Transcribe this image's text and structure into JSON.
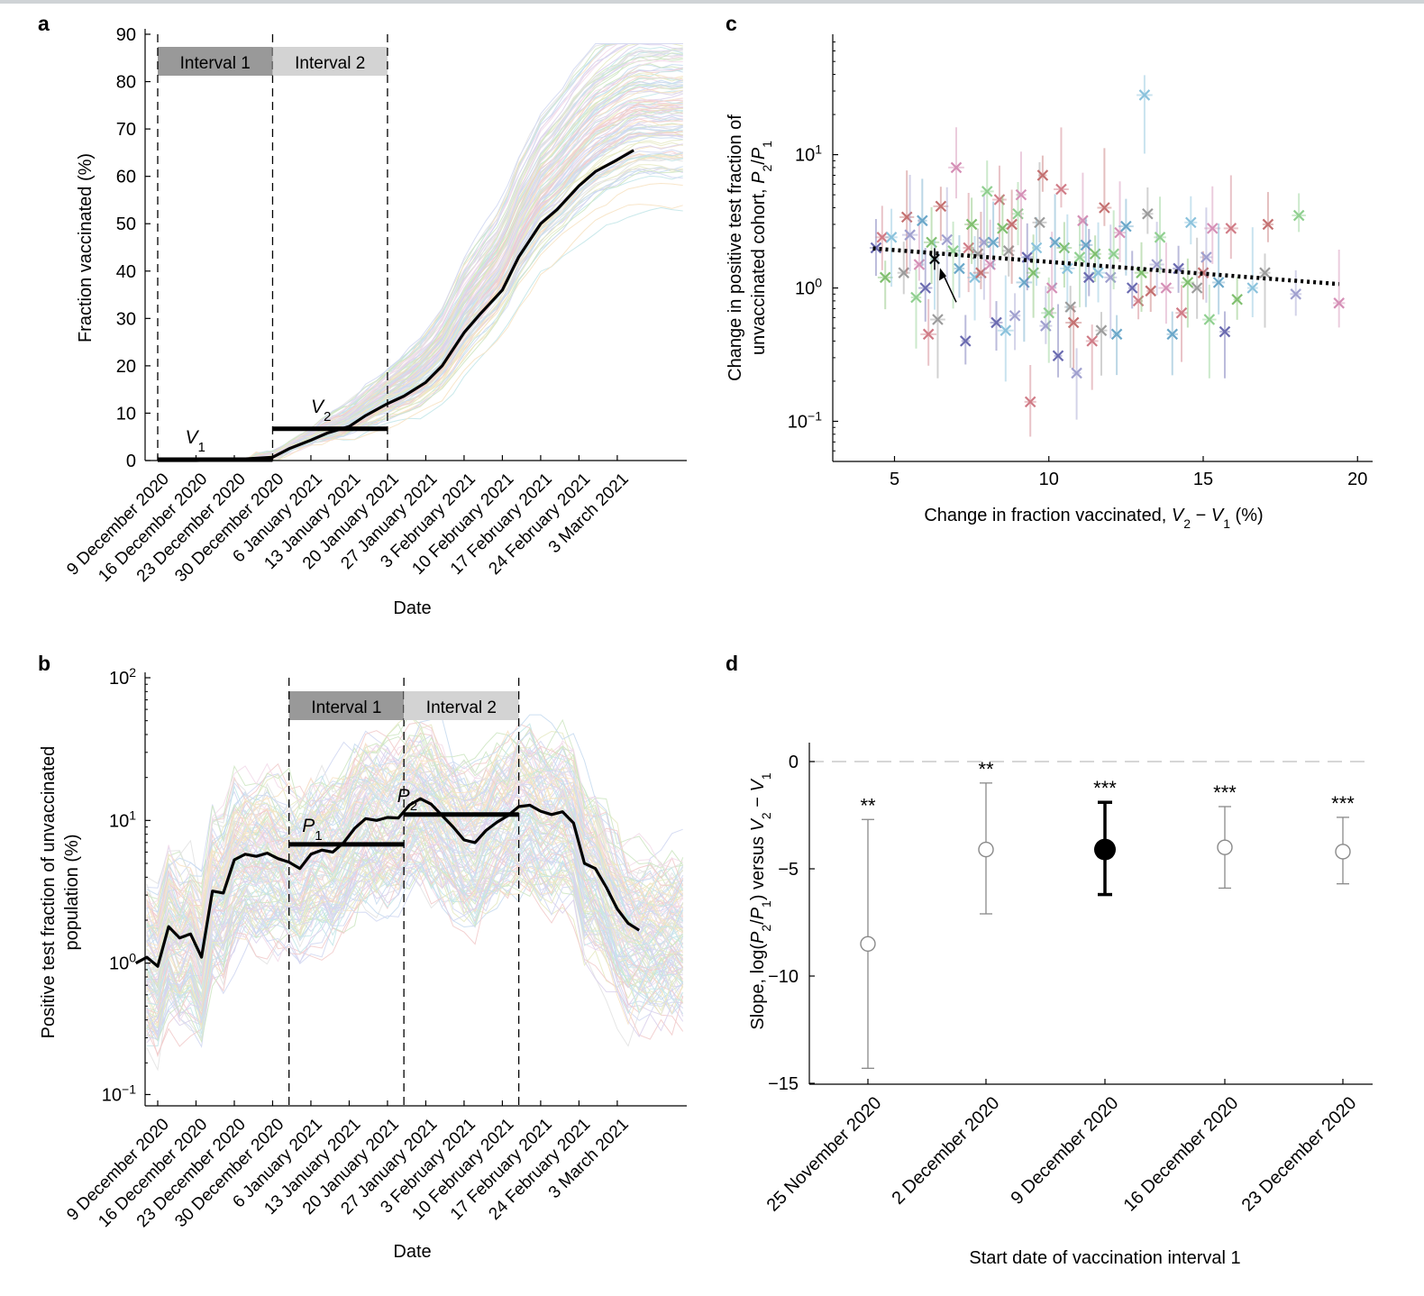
{
  "colors": {
    "palette": [
      "#7fb0dd",
      "#e49a9a",
      "#9ccf8a",
      "#b9a3d8",
      "#f0c98a",
      "#89cfd3",
      "#c7c7c7",
      "#e8b7d6",
      "#a4b0e6",
      "#cfd58a"
    ],
    "pale_palette": [
      "#c8dcef",
      "#f2cccc",
      "#cfe7c4",
      "#dcd1ec",
      "#f7e3c4",
      "#c4e7e9",
      "#e3e3e3",
      "#f3dbea",
      "#d1d8f2",
      "#e7eac4"
    ],
    "scatter_palette": [
      "#6a6ab0",
      "#d07b86",
      "#7fbf6e",
      "#8ac2dc",
      "#9b9b9b",
      "#c47070",
      "#a0a0cf",
      "#8fcf8f",
      "#d58fb6",
      "#6aa7c9"
    ],
    "interval1": "#999999",
    "interval2": "#d3d3d3",
    "highlight": "#000000",
    "ref_dash": "#c8c8c8"
  },
  "panels": {
    "a": {
      "letter": "a"
    },
    "b": {
      "letter": "b"
    },
    "c": {
      "letter": "c"
    },
    "d": {
      "letter": "d"
    }
  },
  "chart_data": [
    {
      "panel": "a",
      "type": "line",
      "xlabel": "Date",
      "ylabel": "Fraction vaccinated (%)",
      "ylim": [
        0,
        90
      ],
      "yticks": [
        0,
        10,
        20,
        30,
        40,
        50,
        60,
        70,
        80,
        90
      ],
      "x_tick_labels": [
        "9 December 2020",
        "16 December 2020",
        "23 December 2020",
        "30 December 2020",
        "6 January 2021",
        "13 January 2021",
        "20 January 2021",
        "27 January 2021",
        "3 February 2021",
        "10 February 2021",
        "17 February 2021",
        "24 February 2021",
        "3 March 2021"
      ],
      "intervals": [
        {
          "label": "Interval 1",
          "start": "9 December 2020",
          "end": "30 December 2020"
        },
        {
          "label": "Interval 2",
          "start": "30 December 2020",
          "end": "20 January 2021"
        }
      ],
      "interval_means": [
        {
          "label": "V",
          "sub": "1",
          "value": 0.2
        },
        {
          "label": "V",
          "sub": "2",
          "value": 6.7
        }
      ],
      "highlight_series_dates": [
        "2020-12-09",
        "2020-12-16",
        "2020-12-23",
        "2020-12-30",
        "2021-01-02",
        "2021-01-06",
        "2021-01-09",
        "2021-01-13",
        "2021-01-16",
        "2021-01-20",
        "2021-01-23",
        "2021-01-27",
        "2021-01-30",
        "2021-02-03",
        "2021-02-06",
        "2021-02-10",
        "2021-02-13",
        "2021-02-17",
        "2021-02-20",
        "2021-02-24",
        "2021-02-27",
        "2021-03-03",
        "2021-03-06"
      ],
      "highlight_series_values": [
        0,
        0,
        0.2,
        0.7,
        2.5,
        4.3,
        5.8,
        7.2,
        9.5,
        12.0,
        13.6,
        16.5,
        20.0,
        27.0,
        31.0,
        36.0,
        43.0,
        50.0,
        53.0,
        58.0,
        61.0,
        63.5,
        65.5
      ],
      "background_series_count": 130,
      "grid": false
    },
    {
      "panel": "b",
      "type": "line",
      "xlabel": "Date",
      "ylabel": "Positive test fraction of unvaccinated population (%)",
      "yscale": "log",
      "ylim": [
        0.1,
        100
      ],
      "yticks": [
        "10⁻¹",
        "10⁰",
        "10¹",
        "10²"
      ],
      "x_tick_labels": [
        "9 December 2020",
        "16 December 2020",
        "23 December 2020",
        "30 December 2020",
        "6 January 2021",
        "13 January 2021",
        "20 January 2021",
        "27 January 2021",
        "3 February 2021",
        "10 February 2021",
        "17 February 2021",
        "24 February 2021",
        "3 March 2021"
      ],
      "intervals": [
        {
          "label": "Interval 1",
          "start": "2 January 2021",
          "end": "23 January 2021"
        },
        {
          "label": "Interval 2",
          "start": "23 January 2021",
          "end": "13 February 2021"
        }
      ],
      "interval_means": [
        {
          "label": "P",
          "sub": "1",
          "value": 6.8
        },
        {
          "label": "P",
          "sub": "2",
          "value": 11.0
        }
      ],
      "highlight_series_dates": [
        "2020-12-05",
        "2020-12-07",
        "2020-12-09",
        "2020-12-11",
        "2020-12-13",
        "2020-12-15",
        "2020-12-17",
        "2020-12-19",
        "2020-12-21",
        "2020-12-23",
        "2020-12-25",
        "2020-12-27",
        "2020-12-29",
        "2020-12-31",
        "2021-01-02",
        "2021-01-04",
        "2021-01-06",
        "2021-01-08",
        "2021-01-10",
        "2021-01-12",
        "2021-01-14",
        "2021-01-16",
        "2021-01-18",
        "2021-01-20",
        "2021-01-22",
        "2021-01-24",
        "2021-01-26",
        "2021-01-28",
        "2021-01-30",
        "2021-02-01",
        "2021-02-03",
        "2021-02-05",
        "2021-02-07",
        "2021-02-09",
        "2021-02-11",
        "2021-02-13",
        "2021-02-15",
        "2021-02-17",
        "2021-02-19",
        "2021-02-21",
        "2021-02-23",
        "2021-02-25",
        "2021-02-27",
        "2021-03-01",
        "2021-03-03",
        "2021-03-05",
        "2021-03-07"
      ],
      "highlight_series_values": [
        1.0,
        1.1,
        0.95,
        1.8,
        1.5,
        1.6,
        1.1,
        3.2,
        3.1,
        5.3,
        5.8,
        5.6,
        5.9,
        5.4,
        5.1,
        4.6,
        5.8,
        6.2,
        6.0,
        7.0,
        8.8,
        10.3,
        10.0,
        10.5,
        10.4,
        12.8,
        14.2,
        13.0,
        10.8,
        9.0,
        7.3,
        7.0,
        8.5,
        9.7,
        10.8,
        12.5,
        12.8,
        11.6,
        11.0,
        11.5,
        9.6,
        5.0,
        4.6,
        3.4,
        2.4,
        1.9,
        1.7
      ],
      "background_series_count": 130,
      "grid": false
    },
    {
      "panel": "c",
      "type": "scatter",
      "xlabel": "Change in fraction vaccinated, V₂ − V₁ (%)",
      "ylabel": "Change in positive test fraction of unvaccinated cohort, P₂/P₁",
      "yscale": "log",
      "xlim": [
        3,
        20.5
      ],
      "ylim": [
        0.05,
        80
      ],
      "xticks": [
        5,
        10,
        15,
        20
      ],
      "yticks": [
        "10⁻¹",
        "10⁰",
        "10¹"
      ],
      "fit_line": {
        "x": [
          4.3,
          19.4
        ],
        "y": [
          1.98,
          1.07
        ],
        "style": "dotted"
      },
      "arrow_target": {
        "x": 6.3,
        "y": 1.65
      },
      "points": [
        {
          "x": 4.4,
          "y": 2.0
        },
        {
          "x": 4.6,
          "y": 2.4
        },
        {
          "x": 4.7,
          "y": 1.2
        },
        {
          "x": 4.9,
          "y": 2.4
        },
        {
          "x": 5.3,
          "y": 1.3
        },
        {
          "x": 5.4,
          "y": 3.4
        },
        {
          "x": 5.5,
          "y": 2.5
        },
        {
          "x": 5.7,
          "y": 0.85
        },
        {
          "x": 5.8,
          "y": 1.5
        },
        {
          "x": 5.9,
          "y": 3.2
        },
        {
          "x": 6.0,
          "y": 1.0
        },
        {
          "x": 6.1,
          "y": 0.45
        },
        {
          "x": 6.2,
          "y": 2.2
        },
        {
          "x": 6.3,
          "y": 1.65
        },
        {
          "x": 6.4,
          "y": 0.58
        },
        {
          "x": 6.5,
          "y": 4.1
        },
        {
          "x": 6.7,
          "y": 2.3
        },
        {
          "x": 6.9,
          "y": 1.9
        },
        {
          "x": 7.0,
          "y": 8.0
        },
        {
          "x": 7.1,
          "y": 1.4
        },
        {
          "x": 7.3,
          "y": 0.4
        },
        {
          "x": 7.4,
          "y": 2.0
        },
        {
          "x": 7.5,
          "y": 3.0
        },
        {
          "x": 7.6,
          "y": 1.2
        },
        {
          "x": 7.7,
          "y": 1.8
        },
        {
          "x": 7.8,
          "y": 1.3
        },
        {
          "x": 7.9,
          "y": 2.2
        },
        {
          "x": 8.0,
          "y": 5.3
        },
        {
          "x": 8.1,
          "y": 1.5
        },
        {
          "x": 8.2,
          "y": 2.2
        },
        {
          "x": 8.3,
          "y": 0.55
        },
        {
          "x": 8.4,
          "y": 4.6
        },
        {
          "x": 8.5,
          "y": 2.8
        },
        {
          "x": 8.6,
          "y": 0.48
        },
        {
          "x": 8.7,
          "y": 1.9
        },
        {
          "x": 8.8,
          "y": 3.0
        },
        {
          "x": 8.9,
          "y": 0.62
        },
        {
          "x": 9.0,
          "y": 3.6
        },
        {
          "x": 9.1,
          "y": 5.0
        },
        {
          "x": 9.2,
          "y": 1.1
        },
        {
          "x": 9.3,
          "y": 1.7
        },
        {
          "x": 9.4,
          "y": 0.14
        },
        {
          "x": 9.5,
          "y": 1.3
        },
        {
          "x": 9.6,
          "y": 2.0
        },
        {
          "x": 9.7,
          "y": 3.1
        },
        {
          "x": 9.8,
          "y": 7.0
        },
        {
          "x": 9.9,
          "y": 0.52
        },
        {
          "x": 10.0,
          "y": 0.65
        },
        {
          "x": 10.1,
          "y": 1.0
        },
        {
          "x": 10.2,
          "y": 2.2
        },
        {
          "x": 10.3,
          "y": 0.31
        },
        {
          "x": 10.4,
          "y": 5.5
        },
        {
          "x": 10.5,
          "y": 2.0
        },
        {
          "x": 10.6,
          "y": 1.4
        },
        {
          "x": 10.7,
          "y": 0.72
        },
        {
          "x": 10.8,
          "y": 0.55
        },
        {
          "x": 10.9,
          "y": 0.23
        },
        {
          "x": 11.0,
          "y": 1.7
        },
        {
          "x": 11.1,
          "y": 3.2
        },
        {
          "x": 11.2,
          "y": 2.1
        },
        {
          "x": 11.3,
          "y": 1.2
        },
        {
          "x": 11.4,
          "y": 0.4
        },
        {
          "x": 11.5,
          "y": 1.8
        },
        {
          "x": 11.6,
          "y": 1.3
        },
        {
          "x": 11.7,
          "y": 0.48
        },
        {
          "x": 11.8,
          "y": 4.0
        },
        {
          "x": 12.0,
          "y": 1.2
        },
        {
          "x": 12.1,
          "y": 1.8
        },
        {
          "x": 12.3,
          "y": 2.6
        },
        {
          "x": 12.5,
          "y": 2.9
        },
        {
          "x": 12.7,
          "y": 1.0
        },
        {
          "x": 12.9,
          "y": 0.8
        },
        {
          "x": 13.0,
          "y": 1.3
        },
        {
          "x": 13.1,
          "y": 28.0
        },
        {
          "x": 13.2,
          "y": 3.6
        },
        {
          "x": 13.3,
          "y": 0.95
        },
        {
          "x": 13.5,
          "y": 1.5
        },
        {
          "x": 13.6,
          "y": 2.4
        },
        {
          "x": 13.8,
          "y": 1.0
        },
        {
          "x": 14.0,
          "y": 0.45
        },
        {
          "x": 14.2,
          "y": 1.4
        },
        {
          "x": 14.3,
          "y": 0.65
        },
        {
          "x": 14.5,
          "y": 1.1
        },
        {
          "x": 14.6,
          "y": 3.1
        },
        {
          "x": 14.8,
          "y": 1.0
        },
        {
          "x": 15.0,
          "y": 1.3
        },
        {
          "x": 15.1,
          "y": 1.7
        },
        {
          "x": 15.2,
          "y": 0.58
        },
        {
          "x": 15.3,
          "y": 2.8
        },
        {
          "x": 15.5,
          "y": 1.1
        },
        {
          "x": 15.7,
          "y": 0.47
        },
        {
          "x": 15.9,
          "y": 2.8
        },
        {
          "x": 16.1,
          "y": 0.82
        },
        {
          "x": 16.6,
          "y": 1.0
        },
        {
          "x": 17.0,
          "y": 1.3
        },
        {
          "x": 17.1,
          "y": 3.0
        },
        {
          "x": 18.0,
          "y": 0.9
        },
        {
          "x": 18.1,
          "y": 3.5
        },
        {
          "x": 19.4,
          "y": 0.77
        },
        {
          "x": 12.2,
          "y": 0.45
        }
      ],
      "grid": false
    },
    {
      "panel": "d",
      "type": "scatter",
      "xlabel": "Start date of vaccination interval 1",
      "ylabel": "Slope, log(P₂/P₁) versus V₂ − V₁",
      "ylim": [
        -15.3,
        1.0
      ],
      "yticks": [
        0,
        -5,
        -10,
        -15
      ],
      "categories": [
        "25 November 2020",
        "2 December 2020",
        "9 December 2020",
        "16 December 2020",
        "23 December 2020"
      ],
      "values": [
        -8.5,
        -4.1,
        -4.1,
        -4.0,
        -4.2
      ],
      "ci_low": [
        -14.3,
        -7.1,
        -6.2,
        -5.9,
        -5.7
      ],
      "ci_high": [
        -2.7,
        -1.0,
        -1.9,
        -2.1,
        -2.6
      ],
      "significance": [
        "**",
        "**",
        "***",
        "***",
        "***"
      ],
      "highlighted_index": 2,
      "reference_line": 0,
      "grid": false
    }
  ]
}
